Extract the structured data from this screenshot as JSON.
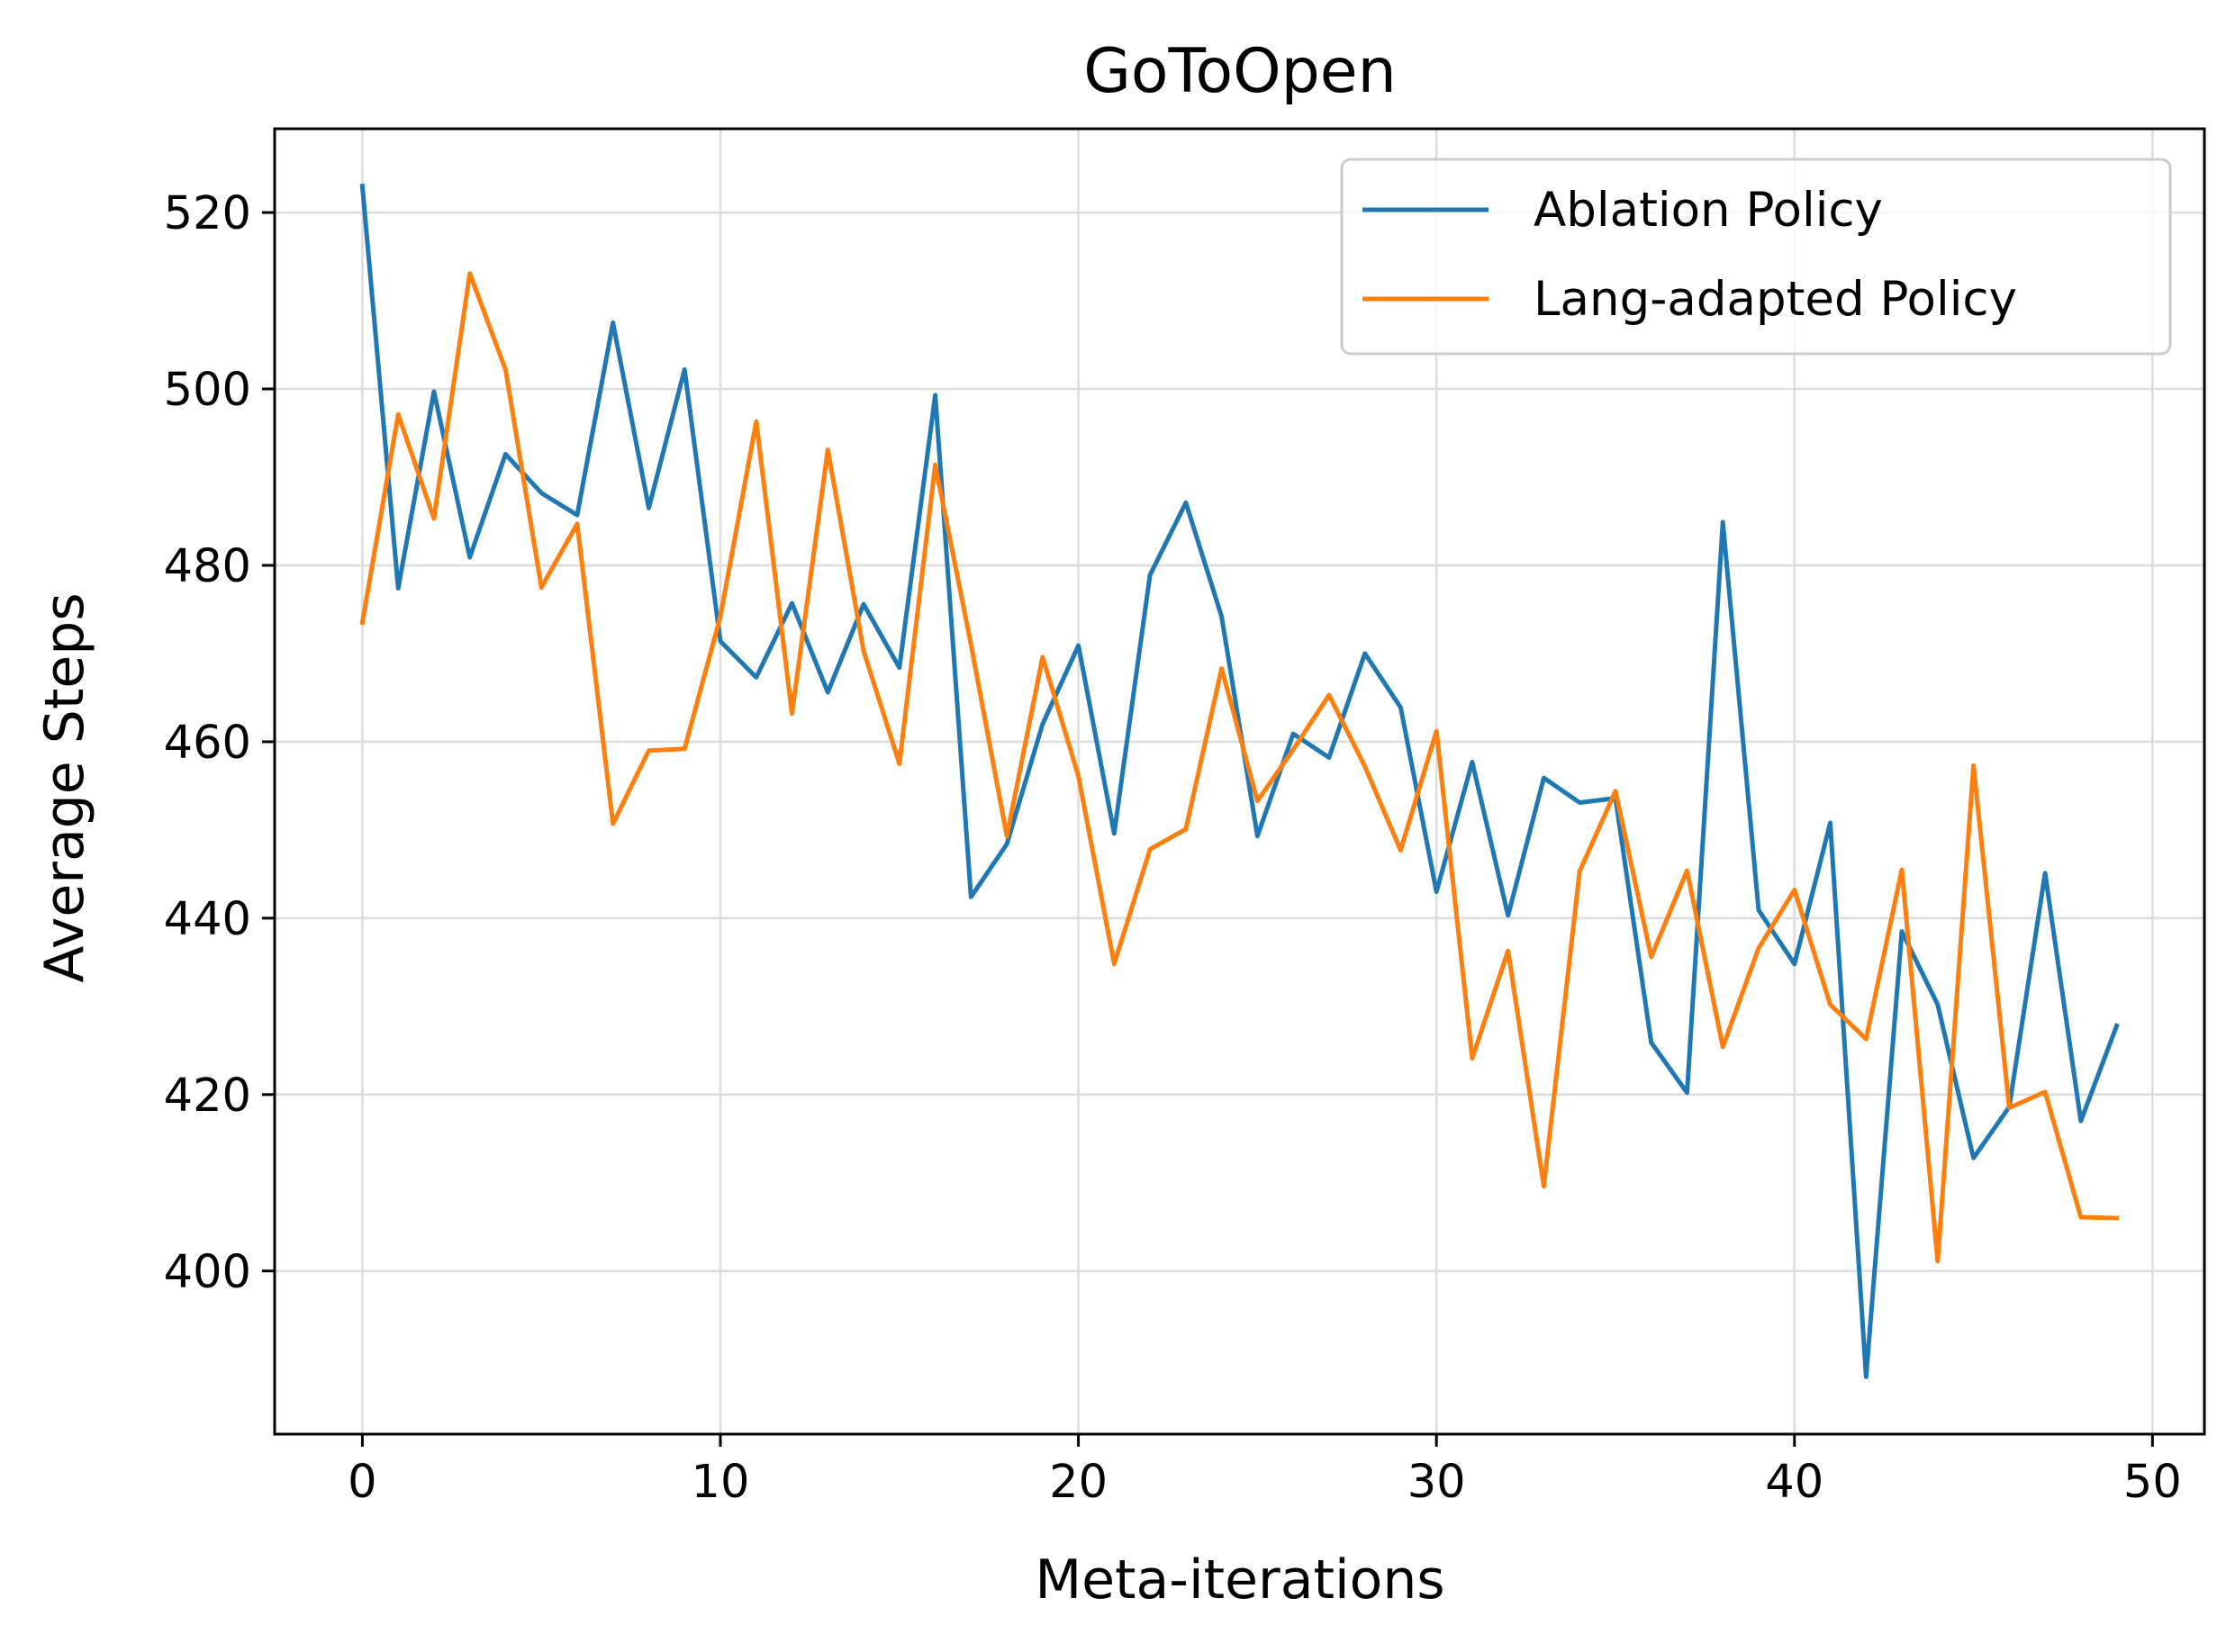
{
  "chart_data": {
    "type": "line",
    "title": "GoToOpen",
    "xlabel": "Meta-iterations",
    "ylabel": "Average Steps",
    "xlim": [
      -2.45,
      51.45
    ],
    "ylim": [
      381.5,
      529.5
    ],
    "xticks": [
      0,
      10,
      20,
      30,
      40,
      50
    ],
    "yticks": [
      400,
      420,
      440,
      460,
      480,
      500,
      520
    ],
    "grid": true,
    "legend_position": "top-right",
    "x": [
      0,
      1,
      2,
      3,
      4,
      5,
      6,
      7,
      8,
      9,
      10,
      11,
      12,
      13,
      14,
      15,
      16,
      17,
      18,
      19,
      20,
      21,
      22,
      23,
      24,
      25,
      26,
      27,
      28,
      29,
      30,
      31,
      32,
      33,
      34,
      35,
      36,
      37,
      38,
      39,
      40,
      41,
      42,
      43,
      44,
      45,
      46,
      47,
      48,
      49
    ],
    "series": [
      {
        "name": "Ablation Policy",
        "color": "#1f77b4",
        "values": [
          523.0,
          477.4,
          499.7,
          480.9,
          492.6,
          488.2,
          485.7,
          507.5,
          486.5,
          502.2,
          471.4,
          467.3,
          475.7,
          465.6,
          475.6,
          468.4,
          499.3,
          442.4,
          448.4,
          462.0,
          470.9,
          449.6,
          478.9,
          487.1,
          474.2,
          449.3,
          460.9,
          458.2,
          470.0,
          463.9,
          443.0,
          457.7,
          440.3,
          455.9,
          453.1,
          453.6,
          425.9,
          420.2,
          484.9,
          440.9,
          434.8,
          450.8,
          388.0,
          438.5,
          430.2,
          412.8,
          418.6,
          445.1,
          417.0,
          427.8
        ]
      },
      {
        "name": "Lang-adapted Policy",
        "color": "#ff7f0e",
        "values": [
          473.5,
          497.1,
          485.3,
          513.1,
          502.2,
          477.5,
          484.7,
          450.7,
          459.0,
          459.2,
          474.2,
          496.3,
          463.2,
          493.1,
          470.3,
          457.5,
          491.4,
          471.0,
          449.3,
          469.6,
          456.1,
          434.8,
          447.8,
          450.1,
          468.3,
          453.3,
          459.1,
          465.3,
          457.2,
          447.7,
          461.2,
          424.1,
          436.3,
          409.6,
          445.3,
          454.4,
          435.6,
          445.4,
          425.4,
          436.6,
          443.2,
          430.2,
          426.3,
          445.5,
          401.1,
          457.3,
          418.5,
          420.3,
          406.1,
          406.0
        ]
      }
    ]
  }
}
